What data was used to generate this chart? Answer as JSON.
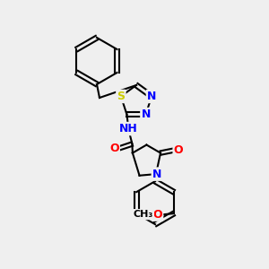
{
  "background_color": "#efefef",
  "bond_color": "#000000",
  "atom_colors": {
    "N": "#0000ff",
    "O": "#ff0000",
    "S": "#cccc00",
    "C": "#000000",
    "H": "#008080"
  },
  "font_size": 9,
  "linewidth": 1.5
}
